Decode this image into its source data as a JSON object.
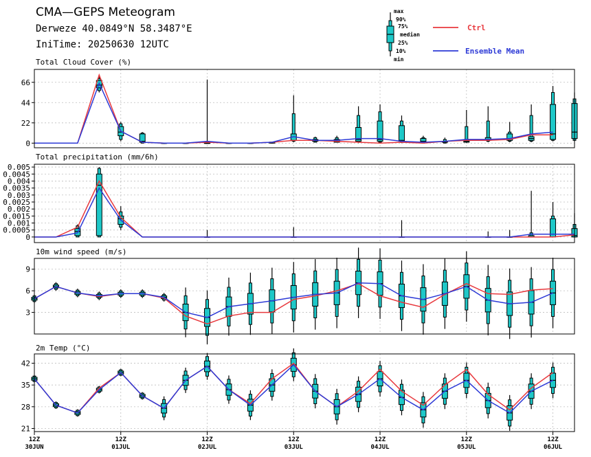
{
  "header": {
    "title": "CMA—GEPS Meteogram",
    "location": "Derweze 40.0849°N 58.3487°E",
    "init_time": "IniTime: 20250630 12UTC"
  },
  "legend": {
    "box_labels": [
      "max",
      "90%",
      "75%",
      "median",
      "25%",
      "10%",
      "min"
    ],
    "ctrl_label": "Ctrl",
    "mean_label": "Ensemble Mean"
  },
  "colors": {
    "ctrl": "#e8383d",
    "mean": "#2c39d6",
    "box_fill": "#1ec8c8",
    "grid": "#bdbdbd"
  },
  "x_axis": {
    "steps": 25,
    "step_hours": 6,
    "tick_steps": [
      0,
      4,
      8,
      12,
      16,
      20,
      24
    ],
    "tick_labels_top": [
      "12Z",
      "12Z",
      "12Z",
      "12Z",
      "12Z",
      "12Z",
      "12Z"
    ],
    "tick_labels_bottom": [
      "30JUN",
      "01JUL",
      "02JUL",
      "03JUL",
      "04JUL",
      "05JUL",
      "06JUL"
    ]
  },
  "chart_data": [
    {
      "type": "boxplot",
      "title": "Total Cloud Cover (%)",
      "ylim": [
        -5,
        80
      ],
      "yticks": [
        0,
        22,
        44,
        66
      ],
      "ytick_labels": [
        "0",
        "22",
        "44",
        "66"
      ],
      "grid": true,
      "ctrl": [
        0,
        0,
        0,
        74,
        13,
        1,
        0,
        0,
        1,
        0,
        0,
        1,
        3,
        3,
        2,
        1,
        0,
        1,
        0,
        2,
        3,
        3,
        4,
        9,
        9
      ],
      "mean": [
        0,
        0,
        0,
        65,
        13,
        1,
        0,
        0,
        2,
        0,
        0,
        1,
        7,
        3,
        3,
        5,
        5,
        2,
        1,
        2,
        4,
        4,
        5,
        10,
        12
      ],
      "boxes": [
        {
          "step": 3,
          "min": 55,
          "p10": 57,
          "p25": 60,
          "median": 63,
          "p75": 68,
          "p90": 70,
          "max": 72
        },
        {
          "step": 4,
          "min": 2,
          "p10": 4,
          "p25": 8,
          "median": 12,
          "p75": 18,
          "p90": 21,
          "max": 23
        },
        {
          "step": 5,
          "min": 0,
          "p10": 0,
          "p25": 1,
          "median": 2,
          "p75": 10,
          "p90": 11,
          "max": 12
        },
        {
          "step": 6,
          "min": 0,
          "p10": 0,
          "p25": 0,
          "median": 0,
          "p75": 0,
          "p90": 0,
          "max": 0
        },
        {
          "step": 7,
          "min": 0,
          "p10": 0,
          "p25": 0,
          "median": 0,
          "p75": 0,
          "p90": 0,
          "max": 0
        },
        {
          "step": 8,
          "min": 0,
          "p10": 0,
          "p25": 0,
          "median": 0,
          "p75": 0,
          "p90": 0,
          "max": 69
        },
        {
          "step": 9,
          "min": 0,
          "p10": 0,
          "p25": 0,
          "median": 0,
          "p75": 0,
          "p90": 0,
          "max": 0
        },
        {
          "step": 10,
          "min": 0,
          "p10": 0,
          "p25": 0,
          "median": 0,
          "p75": 0,
          "p90": 0,
          "max": 0
        },
        {
          "step": 11,
          "min": 0,
          "p10": 0,
          "p25": 0,
          "median": 1,
          "p75": 1,
          "p90": 1,
          "max": 1
        },
        {
          "step": 12,
          "min": 1,
          "p10": 2,
          "p25": 3,
          "median": 3,
          "p75": 10,
          "p90": 32,
          "max": 52
        },
        {
          "step": 13,
          "min": 1,
          "p10": 1,
          "p25": 2,
          "median": 3,
          "p75": 4,
          "p90": 6,
          "max": 7
        },
        {
          "step": 14,
          "min": 1,
          "p10": 1,
          "p25": 1,
          "median": 2,
          "p75": 4,
          "p90": 6,
          "max": 8
        },
        {
          "step": 15,
          "min": 0,
          "p10": 1,
          "p25": 2,
          "median": 4,
          "p75": 17,
          "p90": 30,
          "max": 40
        },
        {
          "step": 16,
          "min": 0,
          "p10": 1,
          "p25": 2,
          "median": 4,
          "p75": 24,
          "p90": 34,
          "max": 42
        },
        {
          "step": 17,
          "min": 0,
          "p10": 1,
          "p25": 2,
          "median": 3,
          "p75": 19,
          "p90": 24,
          "max": 30
        },
        {
          "step": 18,
          "min": 0,
          "p10": 0,
          "p25": 1,
          "median": 2,
          "p75": 5,
          "p90": 6,
          "max": 8
        },
        {
          "step": 19,
          "min": 0,
          "p10": 0,
          "p25": 1,
          "median": 1,
          "p75": 2,
          "p90": 4,
          "max": 6
        },
        {
          "step": 20,
          "min": 0,
          "p10": 1,
          "p25": 1,
          "median": 2,
          "p75": 4,
          "p90": 18,
          "max": 36
        },
        {
          "step": 21,
          "min": 1,
          "p10": 2,
          "p25": 3,
          "median": 4,
          "p75": 6,
          "p90": 24,
          "max": 40
        },
        {
          "step": 22,
          "min": 1,
          "p10": 2,
          "p25": 3,
          "median": 5,
          "p75": 10,
          "p90": 12,
          "max": 23
        },
        {
          "step": 23,
          "min": 1,
          "p10": 2,
          "p25": 3,
          "median": 5,
          "p75": 7,
          "p90": 30,
          "max": 42
        },
        {
          "step": 24,
          "min": 2,
          "p10": 3,
          "p25": 4,
          "median": 10,
          "p75": 42,
          "p90": 55,
          "max": 62
        },
        {
          "step": 25,
          "min": 2,
          "p10": 3,
          "p25": 5,
          "median": 12,
          "p75": 43,
          "p90": 48,
          "max": 55
        }
      ]
    },
    {
      "type": "boxplot",
      "title": "Total precipitation (mm/6h)",
      "ylim": [
        -0.0004,
        0.0052
      ],
      "yticks": [
        0,
        0.0005,
        0.001,
        0.0015,
        0.002,
        0.0025,
        0.003,
        0.0035,
        0.004,
        0.0045,
        0.005
      ],
      "ytick_labels": [
        "0",
        "0.0005",
        "0.001",
        "0.0015",
        "0.002",
        "0.0025",
        "0.003",
        "0.0035",
        "0.004",
        "0.0045",
        "0.005"
      ],
      "grid": true,
      "ctrl": [
        0,
        0,
        0.0007,
        0.004,
        0.0014,
        0,
        0,
        0,
        0,
        0,
        0,
        0,
        0,
        0,
        0,
        0,
        0,
        0,
        0,
        0,
        0,
        0,
        0,
        0,
        0,
        0.00015
      ],
      "mean": [
        0,
        0,
        0.0003,
        0.0035,
        0.0012,
        0,
        0,
        0,
        0,
        0,
        0,
        0,
        0,
        0,
        0,
        0,
        0,
        0,
        0,
        0,
        0,
        0,
        0,
        0.0002,
        0.0002,
        0.0002
      ],
      "boxes": [
        {
          "step": 2,
          "min": 0,
          "p10": 0,
          "p25": 0.0001,
          "median": 0.0004,
          "p75": 0.0006,
          "p90": 0.0008,
          "max": 0.0009
        },
        {
          "step": 3,
          "min": 0,
          "p10": 0,
          "p25": 0.0001,
          "median": 0.0037,
          "p75": 0.0045,
          "p90": 0.0049,
          "max": 0.005
        },
        {
          "step": 4,
          "min": 0.0005,
          "p10": 0.0007,
          "p25": 0.0009,
          "median": 0.0013,
          "p75": 0.0015,
          "p90": 0.0018,
          "max": 0.0022
        },
        {
          "step": 8,
          "min": 0,
          "p10": 0,
          "p25": 0,
          "median": 0,
          "p75": 0,
          "p90": 0,
          "max": 0.0005
        },
        {
          "step": 12,
          "min": 0,
          "p10": 0,
          "p25": 0,
          "median": 0,
          "p75": 0,
          "p90": 0,
          "max": 0.0007
        },
        {
          "step": 17,
          "min": 0,
          "p10": 0,
          "p25": 0,
          "median": 0,
          "p75": 0,
          "p90": 0,
          "max": 0.0012
        },
        {
          "step": 21,
          "min": 0,
          "p10": 0,
          "p25": 0,
          "median": 0,
          "p75": 0,
          "p90": 0,
          "max": 0.0004
        },
        {
          "step": 22,
          "min": 0,
          "p10": 0,
          "p25": 0,
          "median": 0,
          "p75": 0,
          "p90": 0,
          "max": 0.0005
        },
        {
          "step": 23,
          "min": 0,
          "p10": 0,
          "p25": 0,
          "median": 0,
          "p75": 0.0001,
          "p90": 0.0003,
          "max": 0.0033
        },
        {
          "step": 24,
          "min": 0,
          "p10": 0,
          "p25": 0,
          "median": 0.0002,
          "p75": 0.0013,
          "p90": 0.0015,
          "max": 0.0025
        },
        {
          "step": 25,
          "min": 0,
          "p10": 0,
          "p25": 0,
          "median": 0.0001,
          "p75": 0.0006,
          "p90": 0.0009,
          "max": 0.0017
        }
      ]
    },
    {
      "type": "boxplot",
      "title": "10m wind speed (m/s)",
      "ylim": [
        0,
        10.5
      ],
      "yticks": [
        3,
        6,
        9
      ],
      "ytick_labels": [
        "3",
        "6",
        "9"
      ],
      "grid": true,
      "ctrl": [
        4.9,
        6.6,
        5.7,
        5.2,
        5.6,
        5.6,
        5.0,
        2.5,
        1.4,
        2.5,
        3.0,
        3.0,
        4.8,
        5.3,
        6.0,
        7.0,
        5.3,
        4.4,
        3.7,
        5.5,
        7.0,
        5.6,
        5.5,
        6.1,
        6.3
      ],
      "mean": [
        4.9,
        6.6,
        5.7,
        5.3,
        5.6,
        5.6,
        5.1,
        3.0,
        2.3,
        3.8,
        4.2,
        4.6,
        5.1,
        5.5,
        5.7,
        7.1,
        7.0,
        5.3,
        4.8,
        5.6,
        6.6,
        4.7,
        4.2,
        4.4,
        5.7
      ]
    },
    {
      "type": "boxplot",
      "title": "2m Temp (°C)",
      "ylim": [
        20,
        45
      ],
      "yticks": [
        21,
        28,
        35,
        42
      ],
      "ytick_labels": [
        "21",
        "28",
        "35",
        "42"
      ],
      "grid": true,
      "ctrl": [
        37,
        28.5,
        26,
        34,
        39,
        31.5,
        27.5,
        36.5,
        41,
        33.5,
        29,
        37,
        42,
        33,
        28,
        33,
        40,
        33,
        28.5,
        35,
        40,
        32,
        27,
        34,
        39
      ],
      "mean": [
        37,
        28.5,
        26,
        33.5,
        39,
        31.5,
        27.5,
        36.5,
        41,
        33.5,
        28.5,
        35,
        41.5,
        33,
        28,
        32,
        37,
        31,
        27,
        33,
        36.5,
        30,
        26,
        33,
        36.5
      ]
    }
  ]
}
